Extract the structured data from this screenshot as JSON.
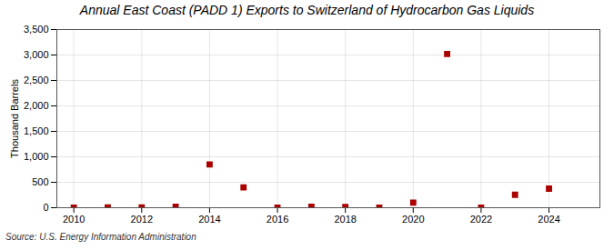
{
  "chart_data": {
    "type": "scatter",
    "title": "Annual East Coast (PADD 1) Exports to Switzerland of Hydrocarbon Gas Liquids",
    "ylabel": "Thousand Barrels",
    "annotations": [
      "Source: U.S. Energy Information Administration"
    ],
    "x": [
      2010,
      2011,
      2012,
      2013,
      2014,
      2015,
      2016,
      2017,
      2018,
      2019,
      2020,
      2021,
      2022,
      2023,
      2024
    ],
    "values": [
      0,
      5,
      5,
      20,
      850,
      400,
      0,
      20,
      15,
      0,
      100,
      3020,
      0,
      255,
      375
    ],
    "color": "#aa0000",
    "marker": "square",
    "xlim": [
      2009.5,
      2025.5
    ],
    "xticks": [
      2010,
      2012,
      2014,
      2016,
      2018,
      2020,
      2022,
      2024
    ],
    "ylim": [
      0,
      3500
    ],
    "yticks": [
      0,
      500,
      {
        "value": 1000,
        "label": "1,000"
      },
      {
        "value": 1500,
        "label": "1,500"
      },
      {
        "value": 2000,
        "label": "2,000"
      },
      {
        "value": 2500,
        "label": "2,500"
      },
      {
        "value": 3000,
        "label": "3,000"
      },
      {
        "value": 3500,
        "label": "3,500"
      }
    ],
    "grid": true
  }
}
